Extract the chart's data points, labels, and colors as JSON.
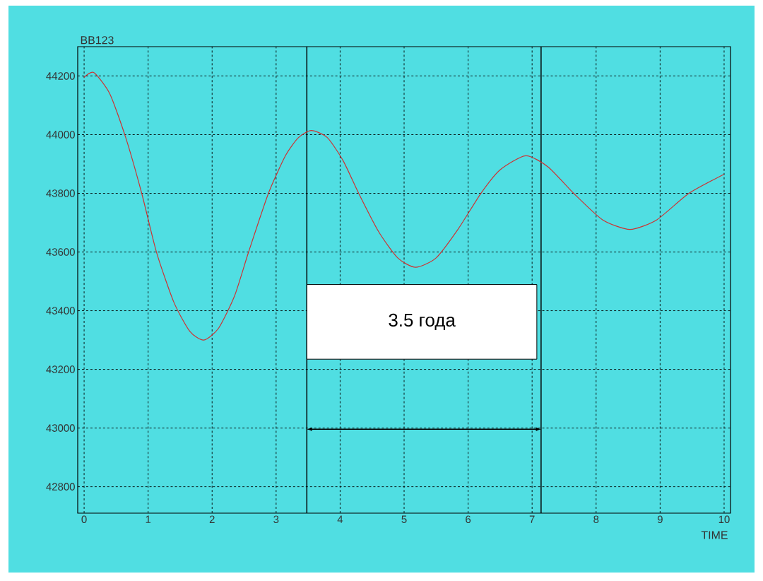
{
  "chart_data": {
    "type": "line",
    "ylabel": "BB123",
    "xlabel": "TIME",
    "x": [
      0,
      0.15,
      0.4,
      0.65,
      0.9,
      1.13,
      1.4,
      1.65,
      1.87,
      2.1,
      2.35,
      2.57,
      2.88,
      3.15,
      3.35,
      3.55,
      3.8,
      4.05,
      4.29,
      4.6,
      4.9,
      5.18,
      5.5,
      5.85,
      6.2,
      6.5,
      6.9,
      7.25,
      7.65,
      8.1,
      8.53,
      8.95,
      9.45,
      10
    ],
    "series": [
      {
        "color": "#cc3333",
        "values": [
          44195,
          44212,
          44140,
          43990,
          43800,
          43600,
          43430,
          43330,
          43300,
          43340,
          43450,
          43600,
          43800,
          43930,
          43990,
          44014,
          43990,
          43910,
          43800,
          43670,
          43580,
          43548,
          43580,
          43680,
          43800,
          43880,
          43928,
          43890,
          43800,
          43710,
          43677,
          43710,
          43800,
          43865
        ]
      }
    ],
    "xlim": [
      -0.1,
      10.1
    ],
    "ylim": [
      42710,
      44300
    ],
    "xticks": [
      0,
      1,
      2,
      3,
      4,
      5,
      6,
      7,
      8,
      9,
      10
    ],
    "yticks": [
      42800,
      43000,
      43200,
      43400,
      43600,
      43800,
      44000,
      44200
    ],
    "grid": true,
    "line_style": "solid",
    "ref_lines": [
      {
        "axis": "x",
        "value": 3.48,
        "color": "#000000"
      },
      {
        "axis": "x",
        "value": 7.14,
        "color": "#000000"
      }
    ],
    "annotations": [
      "3.5 года"
    ]
  }
}
